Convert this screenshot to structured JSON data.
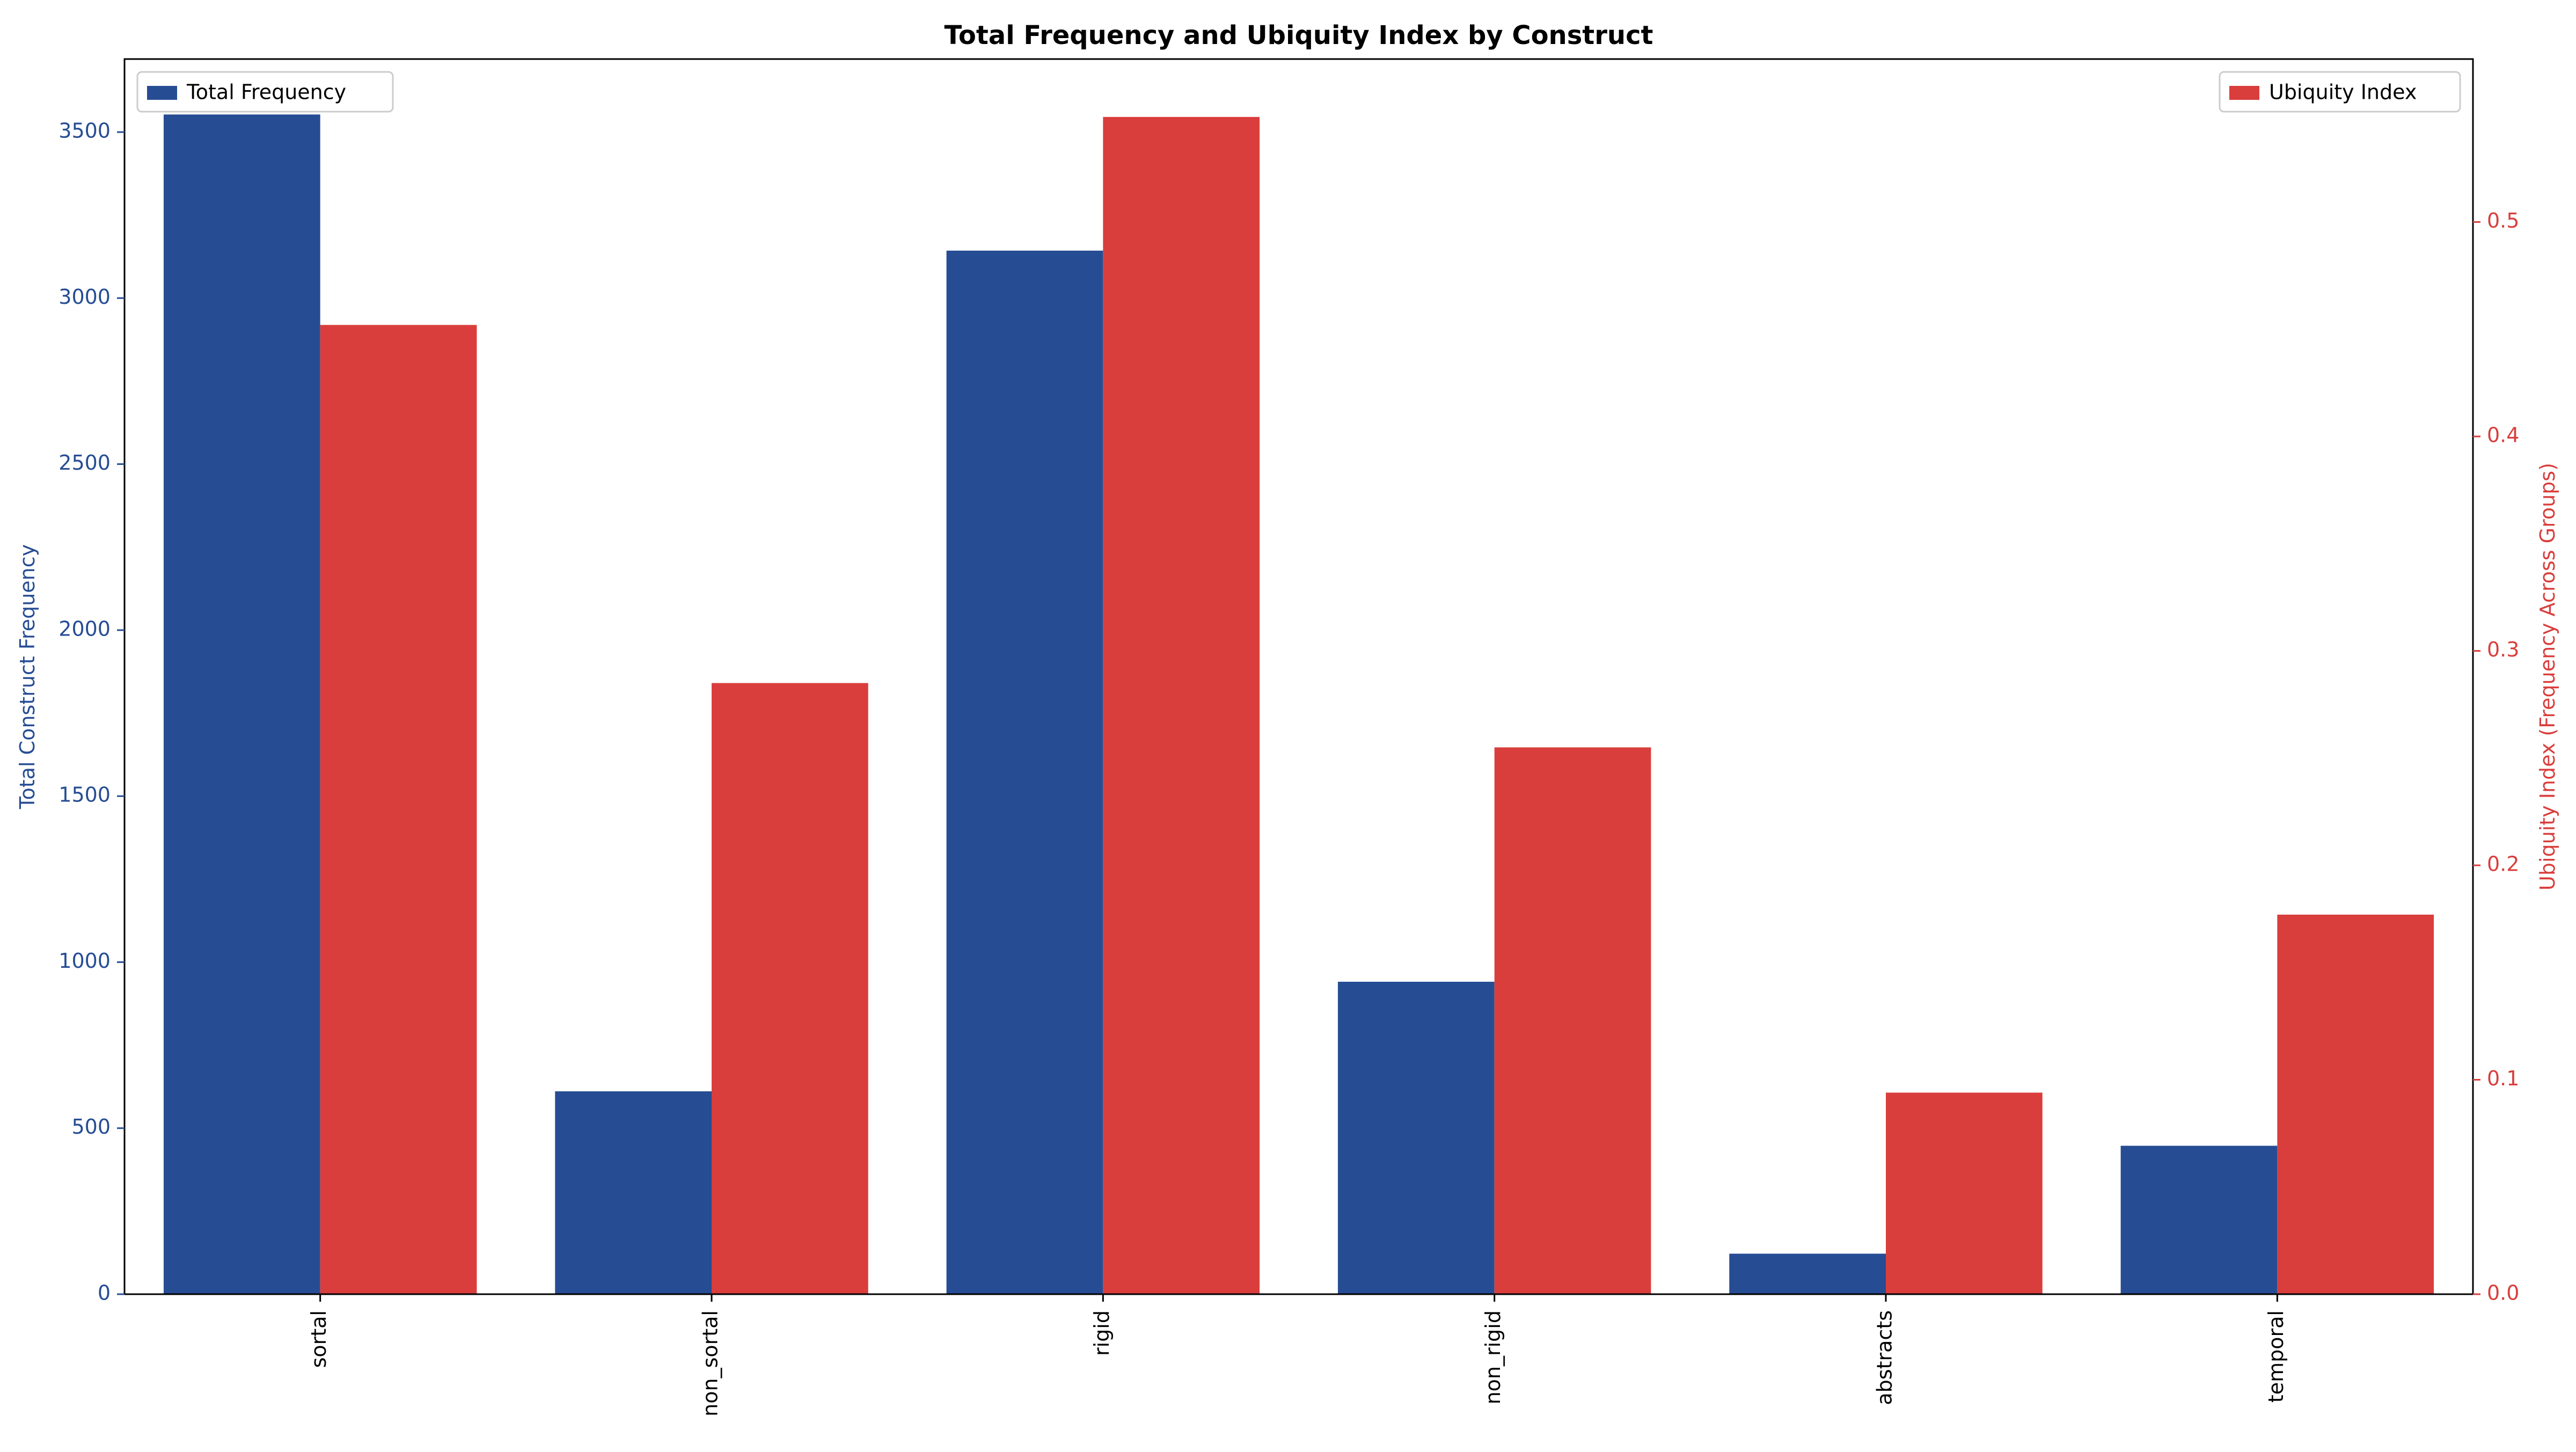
{
  "chart_data": {
    "type": "bar",
    "title": "Total Frequency and Ubiquity Index by Construct",
    "xlabel": "",
    "categories": [
      "sortal",
      "non_sortal",
      "rigid",
      "non_rigid",
      "abstracts",
      "temporal"
    ],
    "series": [
      {
        "name": "Total Frequency",
        "axis": "left",
        "color": "#264d94",
        "values": [
          3553,
          611,
          3143,
          941,
          122,
          447
        ]
      },
      {
        "name": "Ubiquity Index",
        "axis": "right",
        "color": "#d93e3c",
        "values": [
          0.452,
          0.285,
          0.549,
          0.255,
          0.094,
          0.177
        ]
      }
    ],
    "y_left": {
      "label": "Total Construct Frequency",
      "color": "#264d94",
      "ylim": [
        0,
        3720
      ],
      "ticks": [
        0,
        500,
        1000,
        1500,
        2000,
        2500,
        3000,
        3500
      ]
    },
    "y_right": {
      "label": "Ubiquity Index (Frequency Across Groups)",
      "color": "#d93e3c",
      "ylim": [
        0,
        0.576
      ],
      "ticks": [
        "0.0",
        "0.1",
        "0.2",
        "0.3",
        "0.4",
        "0.5"
      ]
    },
    "legends": {
      "left": {
        "position": "top-left",
        "label": "Total Frequency"
      },
      "right": {
        "position": "top-right",
        "label": "Ubiquity Index"
      }
    },
    "grid": false
  }
}
